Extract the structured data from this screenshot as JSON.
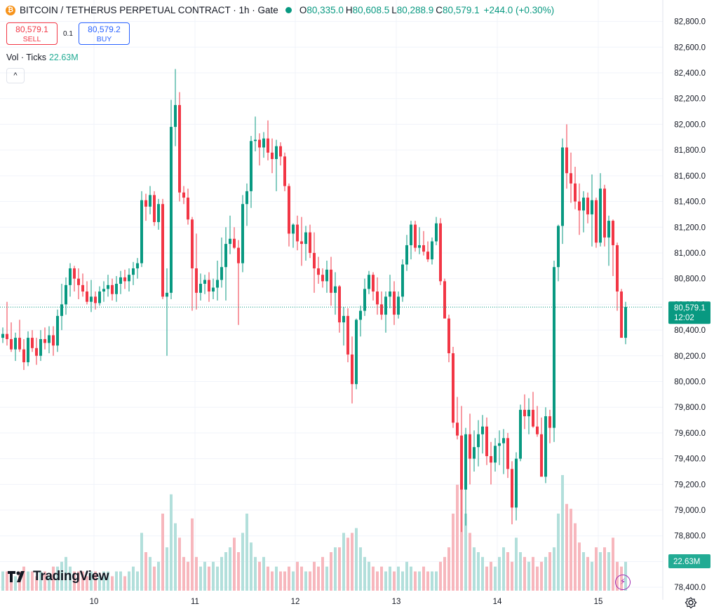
{
  "header": {
    "coin_glyph": "₿",
    "symbol": "BITCOIN / TETHERUS PERPETUAL CONTRACT · 1h · Gate",
    "open_label": "O",
    "open": "80,335.0",
    "high_label": "H",
    "high": "80,608.5",
    "low_label": "L",
    "low": "80,288.9",
    "close_label": "C",
    "close": "80,579.1",
    "change": "+244.0 (+0.30%)"
  },
  "trade": {
    "sell_price": "80,579.1",
    "sell_label": "SELL",
    "spread": "0.1",
    "buy_price": "80,579.2",
    "buy_label": "BUY"
  },
  "volume_legend": {
    "label": "Vol · Ticks",
    "value": "22.63M"
  },
  "collapse_glyph": "^",
  "branding": {
    "name": "TradingView"
  },
  "flash_glyph": "⚡",
  "colors": {
    "up": "#089981",
    "down": "#f23645",
    "vol_up": "#b2dfdb",
    "vol_down": "#f7b7bd",
    "grid": "#f0f3fa"
  },
  "chart_data": {
    "type": "candlestick",
    "x_ticks": [
      "10",
      "11",
      "12",
      "13",
      "14",
      "15"
    ],
    "y_ticks": [
      "82,800.0",
      "82,600.0",
      "82,400.0",
      "82,200.0",
      "82,000.0",
      "81,800.0",
      "81,600.0",
      "81,400.0",
      "81,200.0",
      "81,000.0",
      "80,800.0",
      "80,600.0",
      "80,400.0",
      "80,200.0",
      "80,000.0",
      "79,800.0",
      "79,600.0",
      "79,400.0",
      "79,200.0",
      "79,000.0",
      "78,800.0",
      "78,600.0",
      "78,400.0"
    ],
    "ylim": [
      78390,
      82885
    ],
    "last_price": "80,579.1",
    "countdown": "12:02",
    "volume_label": "22.63M",
    "candles": [
      [
        80340,
        80420,
        80300,
        80370
      ],
      [
        80370,
        80620,
        80280,
        80330
      ],
      [
        80330,
        80460,
        80230,
        80250
      ],
      [
        80250,
        80380,
        80160,
        80340
      ],
      [
        80340,
        80480,
        80230,
        80250
      ],
      [
        80250,
        80330,
        80090,
        80150
      ],
      [
        80150,
        80390,
        80120,
        80340
      ],
      [
        80340,
        80400,
        80230,
        80260
      ],
      [
        80260,
        80340,
        80130,
        80200
      ],
      [
        80200,
        80400,
        80160,
        80330
      ],
      [
        80330,
        80420,
        80250,
        80300
      ],
      [
        80300,
        80430,
        80220,
        80360
      ],
      [
        80360,
        80430,
        80200,
        80280
      ],
      [
        80280,
        80560,
        80230,
        80510
      ],
      [
        80510,
        80760,
        80400,
        80600
      ],
      [
        80600,
        80810,
        80520,
        80750
      ],
      [
        80750,
        80920,
        80660,
        80880
      ],
      [
        80880,
        80900,
        80700,
        80800
      ],
      [
        80800,
        80880,
        80640,
        80750
      ],
      [
        80750,
        80840,
        80660,
        80700
      ],
      [
        80700,
        80780,
        80600,
        80620
      ],
      [
        80620,
        80790,
        80540,
        80660
      ],
      [
        80660,
        80700,
        80560,
        80610
      ],
      [
        80610,
        80740,
        80590,
        80700
      ],
      [
        80700,
        80780,
        80620,
        80720
      ],
      [
        80720,
        80830,
        80660,
        80750
      ],
      [
        80750,
        80800,
        80630,
        80680
      ],
      [
        80680,
        80820,
        80620,
        80760
      ],
      [
        80760,
        80860,
        80680,
        80810
      ],
      [
        80810,
        80870,
        80720,
        80780
      ],
      [
        80780,
        80880,
        80700,
        80830
      ],
      [
        80830,
        80930,
        80750,
        80880
      ],
      [
        80880,
        80960,
        80800,
        80920
      ],
      [
        80920,
        81480,
        80890,
        81410
      ],
      [
        81410,
        81460,
        81250,
        81360
      ],
      [
        81360,
        81520,
        81300,
        81450
      ],
      [
        81450,
        81480,
        81210,
        81240
      ],
      [
        81240,
        81420,
        81180,
        81380
      ],
      [
        81380,
        81420,
        80640,
        80660
      ],
      [
        80660,
        80880,
        80200,
        80690
      ],
      [
        80690,
        82190,
        80640,
        81980
      ],
      [
        81980,
        82430,
        81830,
        82150
      ],
      [
        82150,
        82250,
        81400,
        81470
      ],
      [
        81470,
        81520,
        81380,
        81430
      ],
      [
        81430,
        81500,
        81220,
        81260
      ],
      [
        81260,
        81280,
        80550,
        80880
      ],
      [
        80880,
        81150,
        80560,
        80690
      ],
      [
        80690,
        80840,
        80630,
        80760
      ],
      [
        80760,
        80830,
        80680,
        80790
      ],
      [
        80790,
        80850,
        80620,
        80700
      ],
      [
        80700,
        80800,
        80640,
        80730
      ],
      [
        80730,
        80940,
        80630,
        80790
      ],
      [
        80790,
        81120,
        80730,
        80890
      ],
      [
        80890,
        81200,
        80630,
        81070
      ],
      [
        81070,
        81290,
        80990,
        81110
      ],
      [
        81110,
        81200,
        81030,
        81040
      ],
      [
        81040,
        81100,
        80440,
        80920
      ],
      [
        80920,
        81450,
        80850,
        81380
      ],
      [
        81380,
        81540,
        81210,
        81480
      ],
      [
        81480,
        81910,
        81350,
        81870
      ],
      [
        81870,
        82060,
        81790,
        81880
      ],
      [
        81880,
        81930,
        81680,
        81820
      ],
      [
        81820,
        81940,
        81740,
        81890
      ],
      [
        81890,
        82030,
        81720,
        81780
      ],
      [
        81780,
        81890,
        81620,
        81730
      ],
      [
        81730,
        81880,
        81480,
        81830
      ],
      [
        81830,
        81860,
        81680,
        81750
      ],
      [
        81750,
        81780,
        81480,
        81520
      ],
      [
        81520,
        81540,
        81050,
        81150
      ],
      [
        81150,
        81230,
        81040,
        81220
      ],
      [
        81220,
        81290,
        81020,
        81090
      ],
      [
        81090,
        81280,
        80900,
        81070
      ],
      [
        81070,
        81210,
        80940,
        81160
      ],
      [
        81160,
        81220,
        80960,
        81000
      ],
      [
        81000,
        81160,
        80690,
        80880
      ],
      [
        80880,
        80970,
        80760,
        80830
      ],
      [
        80830,
        80880,
        80730,
        80780
      ],
      [
        80780,
        80940,
        80690,
        80870
      ],
      [
        80870,
        80970,
        80590,
        80690
      ],
      [
        80690,
        80850,
        80520,
        80740
      ],
      [
        80740,
        80750,
        80380,
        80460
      ],
      [
        80460,
        80580,
        80280,
        80510
      ],
      [
        80510,
        80570,
        80150,
        80210
      ],
      [
        80210,
        80350,
        79830,
        79980
      ],
      [
        79980,
        80490,
        79940,
        80480
      ],
      [
        80480,
        80590,
        80350,
        80550
      ],
      [
        80550,
        80800,
        80510,
        80720
      ],
      [
        80720,
        80860,
        80680,
        80830
      ],
      [
        80830,
        80850,
        80630,
        80700
      ],
      [
        80700,
        80810,
        80520,
        80600
      ],
      [
        80600,
        80700,
        80480,
        80520
      ],
      [
        80520,
        80700,
        80380,
        80660
      ],
      [
        80660,
        80830,
        80570,
        80700
      ],
      [
        80700,
        80780,
        80440,
        80520
      ],
      [
        80520,
        80700,
        80490,
        80660
      ],
      [
        80660,
        80950,
        80620,
        80910
      ],
      [
        80910,
        81140,
        80860,
        81060
      ],
      [
        81060,
        81250,
        80950,
        81220
      ],
      [
        81220,
        81250,
        81010,
        81040
      ],
      [
        81040,
        81200,
        80990,
        81060
      ],
      [
        81060,
        81170,
        80980,
        81010
      ],
      [
        81010,
        81090,
        80930,
        80950
      ],
      [
        80950,
        81120,
        80910,
        81090
      ],
      [
        81090,
        81280,
        81060,
        81230
      ],
      [
        81230,
        81270,
        80750,
        80780
      ],
      [
        80780,
        80800,
        80500,
        80490
      ],
      [
        80490,
        80520,
        80150,
        80220
      ],
      [
        80220,
        80270,
        79640,
        79680
      ],
      [
        79680,
        79880,
        79550,
        79580
      ],
      [
        79580,
        79810,
        78830,
        79160
      ],
      [
        79160,
        79640,
        78880,
        79590
      ],
      [
        79590,
        79750,
        79200,
        79400
      ],
      [
        79400,
        79620,
        79300,
        79490
      ],
      [
        79490,
        79700,
        79340,
        79590
      ],
      [
        79590,
        79740,
        79440,
        79650
      ],
      [
        79650,
        79720,
        79350,
        79420
      ],
      [
        79420,
        79530,
        79200,
        79370
      ],
      [
        79370,
        79560,
        79300,
        79500
      ],
      [
        79500,
        79620,
        79350,
        79520
      ],
      [
        79520,
        79630,
        79280,
        79560
      ],
      [
        79560,
        79600,
        79250,
        79320
      ],
      [
        79320,
        79380,
        78890,
        79020
      ],
      [
        79020,
        79450,
        78920,
        79400
      ],
      [
        79400,
        79820,
        79380,
        79780
      ],
      [
        79780,
        79900,
        79630,
        79730
      ],
      [
        79730,
        79870,
        79590,
        79780
      ],
      [
        79780,
        79920,
        79640,
        79650
      ],
      [
        79650,
        79810,
        79570,
        79590
      ],
      [
        79590,
        79720,
        79290,
        79260
      ],
      [
        79260,
        79800,
        79210,
        79730
      ],
      [
        79730,
        79780,
        79520,
        79640
      ],
      [
        79640,
        80940,
        79530,
        80890
      ],
      [
        80890,
        81220,
        80780,
        81210
      ],
      [
        81210,
        81890,
        81070,
        81820
      ],
      [
        81820,
        82000,
        81500,
        81620
      ],
      [
        81620,
        81780,
        81390,
        81540
      ],
      [
        81540,
        81670,
        81340,
        81400
      ],
      [
        81400,
        81540,
        81140,
        81330
      ],
      [
        81330,
        81480,
        81160,
        81430
      ],
      [
        81430,
        81470,
        81230,
        81300
      ],
      [
        81300,
        81610,
        81050,
        81410
      ],
      [
        81410,
        81430,
        81040,
        81080
      ],
      [
        81080,
        81620,
        81050,
        81500
      ],
      [
        81500,
        81530,
        81050,
        81120
      ],
      [
        81120,
        81290,
        80900,
        81250
      ],
      [
        81250,
        81260,
        80820,
        81060
      ],
      [
        81060,
        81080,
        80550,
        80700
      ],
      [
        80700,
        80720,
        80350,
        80340
      ],
      [
        80340,
        80620,
        80290,
        80580
      ]
    ],
    "volumes": [
      4,
      4,
      3,
      3,
      4,
      5,
      4,
      4,
      3,
      4,
      4,
      3,
      5,
      5,
      6,
      7,
      5,
      4,
      4,
      4,
      3,
      4,
      4,
      3,
      4,
      4,
      3,
      4,
      4,
      3,
      4,
      5,
      4,
      12,
      8,
      7,
      5,
      6,
      16,
      9,
      20,
      14,
      11,
      7,
      6,
      15,
      7,
      5,
      6,
      5,
      6,
      5,
      7,
      8,
      9,
      11,
      8,
      12,
      16,
      10,
      7,
      6,
      7,
      5,
      4,
      5,
      4,
      4,
      5,
      4,
      6,
      5,
      4,
      4,
      6,
      5,
      7,
      5,
      8,
      9,
      9,
      12,
      11,
      12,
      13,
      9,
      7,
      6,
      5,
      4,
      5,
      4,
      5,
      4,
      5,
      4,
      6,
      5,
      4,
      4,
      5,
      4,
      4,
      4,
      6,
      7,
      9,
      16,
      22,
      23,
      16,
      12,
      9,
      8,
      7,
      5,
      6,
      5,
      7,
      9,
      8,
      6,
      11,
      8,
      7,
      6,
      7,
      5,
      6,
      7,
      8,
      9,
      16,
      24,
      18,
      17,
      14,
      10,
      8,
      7,
      6,
      9,
      8,
      9,
      8,
      11,
      6,
      5,
      6
    ]
  }
}
